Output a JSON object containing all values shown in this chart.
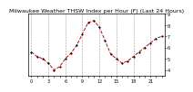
{
  "title": "Milwaukee Weather THSW Index per Hour (F) (Last 24 Hours)",
  "x_values": [
    0,
    1,
    2,
    3,
    4,
    5,
    6,
    7,
    8,
    9,
    10,
    11,
    12,
    13,
    14,
    15,
    16,
    17,
    18,
    19,
    20,
    21,
    22,
    23
  ],
  "y_values": [
    56,
    52,
    50,
    46,
    40,
    43,
    50,
    55,
    62,
    72,
    82,
    84,
    78,
    66,
    54,
    50,
    46,
    48,
    52,
    56,
    60,
    64,
    68,
    70
  ],
  "ylim": [
    35,
    90
  ],
  "ytick_vals": [
    40,
    50,
    60,
    70,
    80,
    90
  ],
  "ytick_labels": [
    "4",
    "5",
    "6",
    "7",
    "8",
    "9"
  ],
  "xlim": [
    -0.5,
    23.5
  ],
  "xtick_vals": [
    0,
    1,
    2,
    3,
    4,
    5,
    6,
    7,
    8,
    9,
    10,
    11,
    12,
    13,
    14,
    15,
    16,
    17,
    18,
    19,
    20,
    21,
    22,
    23
  ],
  "grid_xticks": [
    0,
    3,
    6,
    9,
    12,
    15,
    18,
    21
  ],
  "line_color": "#cc0000",
  "marker_color": "#000000",
  "grid_color": "#999999",
  "bg_color": "#ffffff",
  "title_color": "#000000",
  "title_fontsize": 4.5,
  "tick_fontsize": 3.5,
  "linewidth": 0.7,
  "markersize": 1.2
}
